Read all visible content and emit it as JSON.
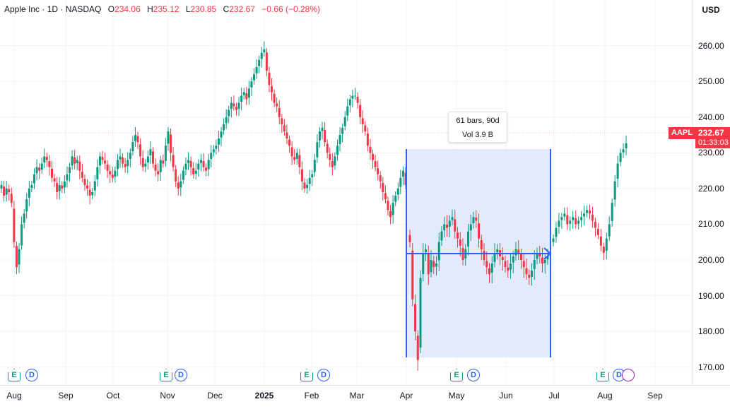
{
  "legend": {
    "symbol": "Apple Inc · 1D · NASDAQ",
    "open_label": "O",
    "open": "234.06",
    "high_label": "H",
    "high": "235.12",
    "low_label": "L",
    "low": "230.85",
    "close_label": "C",
    "close": "232.67",
    "change": "−0.66 (−0.28%)"
  },
  "currency": "USD",
  "price_tag": {
    "ticker": "AAPL",
    "price": "232.67",
    "countdown": "01:33:03"
  },
  "measure": {
    "bars": "61 bars, 90d",
    "volume": "Vol 3.9 B"
  },
  "colors": {
    "up": "#089981",
    "down": "#f23645",
    "range_fill": "#dde6fc",
    "range_line": "#2962ff"
  },
  "events": [
    {
      "type": "E",
      "month": "Aug"
    },
    {
      "type": "D",
      "month": "Aug"
    },
    {
      "type": "E",
      "month": "Nov"
    },
    {
      "type": "D",
      "month": "Nov"
    },
    {
      "type": "E",
      "month": "Feb"
    },
    {
      "type": "D",
      "month": "Feb"
    },
    {
      "type": "E",
      "month": "May"
    },
    {
      "type": "D",
      "month": "May"
    },
    {
      "type": "E",
      "month": "Aug"
    },
    {
      "type": "D",
      "month": "Aug"
    },
    {
      "type": "S",
      "month": "Aug"
    }
  ],
  "chart_data": {
    "type": "line",
    "title": "Apple Inc · 1D · NASDAQ",
    "ylim": [
      165,
      272
    ],
    "y_ticks": [
      "170.00",
      "180.00",
      "190.00",
      "200.00",
      "210.00",
      "220.00",
      "230.00",
      "240.00",
      "250.00",
      "260.00"
    ],
    "x_ticks": [
      "Aug",
      "Sep",
      "Oct",
      "Nov",
      "Dec",
      "2025",
      "Feb",
      "Mar",
      "Apr",
      "May",
      "Jun",
      "Jul",
      "Aug",
      "Sep"
    ],
    "grid": true,
    "series": [
      {
        "name": "AAPL",
        "x": [
          "Aug",
          "Sep",
          "Oct",
          "Nov",
          "Dec",
          "2025",
          "Feb",
          "Mar",
          "Apr",
          "May",
          "Jun",
          "Jul",
          "Aug"
        ],
        "values": [
          221,
          226,
          226,
          222,
          238,
          250,
          232,
          240,
          218,
          209,
          201,
          211,
          230
        ]
      }
    ],
    "closes": [
      221,
      218,
      220,
      219,
      216,
      205,
      198,
      203,
      210,
      213,
      217,
      220,
      221,
      224,
      226,
      225,
      227,
      229,
      228,
      226,
      223,
      222,
      219,
      221,
      220,
      222,
      224,
      226,
      229,
      227,
      228,
      225,
      223,
      221,
      220,
      218,
      219,
      222,
      226,
      229,
      228,
      227,
      225,
      224,
      223,
      225,
      228,
      229,
      227,
      226,
      228,
      230,
      233,
      235,
      233,
      229,
      226,
      227,
      229,
      231,
      227,
      225,
      224,
      228,
      227,
      232,
      236,
      230,
      226,
      222,
      220,
      222,
      225,
      227,
      228,
      226,
      224,
      225,
      227,
      228,
      226,
      225,
      228,
      230,
      231,
      232,
      234,
      236,
      238,
      240,
      242,
      244,
      243,
      242,
      244,
      246,
      247,
      245,
      248,
      250,
      252,
      254,
      256,
      258,
      259,
      253,
      249,
      247,
      244,
      243,
      240,
      238,
      236,
      234,
      232,
      229,
      228,
      230,
      226,
      222,
      220,
      221,
      223,
      224,
      228,
      233,
      236,
      237,
      233,
      230,
      228,
      226,
      229,
      232,
      235,
      237,
      240,
      243,
      245,
      246,
      246,
      244,
      240,
      238,
      236,
      232,
      230,
      228,
      226,
      224,
      222,
      219,
      217,
      214,
      212,
      216,
      218,
      220,
      223,
      225,
      221
    ],
    "range_closes": [
      205,
      189,
      180,
      172,
      195,
      202,
      203,
      196,
      200,
      198,
      199,
      205,
      208,
      210,
      209,
      211,
      212,
      208,
      206,
      204,
      200,
      203,
      208,
      210,
      212,
      211,
      206,
      203,
      200,
      198,
      196,
      199,
      202,
      203,
      201,
      200,
      198,
      197,
      199,
      201,
      203,
      202,
      200,
      198,
      196,
      195,
      197,
      200,
      202,
      201,
      199,
      200,
      201
    ],
    "post_closes": [
      206,
      209,
      211,
      212,
      213,
      210,
      211,
      212,
      210,
      211,
      212,
      213,
      214,
      213,
      211,
      209,
      207,
      204,
      202,
      206,
      210,
      216,
      222,
      227,
      230,
      231,
      232.67
    ]
  }
}
